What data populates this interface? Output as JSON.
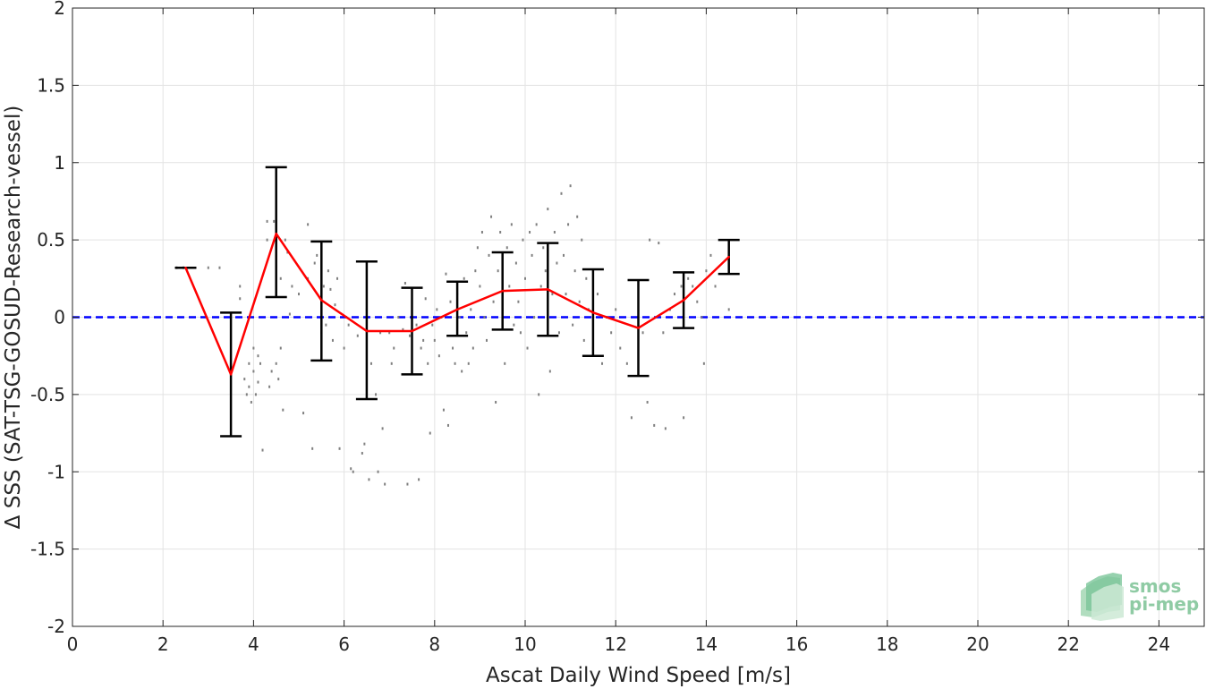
{
  "chart_data": {
    "type": "scatter",
    "title": "",
    "xlabel": "Ascat Daily Wind Speed [m/s]",
    "ylabel": "Δ SSS (SAT-TSG-GOSUD-Research-vessel)",
    "xlim": [
      0,
      25
    ],
    "ylim": [
      -2,
      2
    ],
    "xticks": [
      0,
      2,
      4,
      6,
      8,
      10,
      12,
      14,
      16,
      18,
      20,
      22,
      24
    ],
    "yticks": [
      -2,
      -1.5,
      -1,
      -0.5,
      0,
      0.5,
      1,
      1.5,
      2
    ],
    "xtick_labels": [
      "0",
      "2",
      "4",
      "6",
      "8",
      "10",
      "12",
      "14",
      "16",
      "18",
      "20",
      "22",
      "24"
    ],
    "ytick_labels": [
      "-2",
      "-1.5",
      "-1",
      "-0.5",
      "0",
      "0.5",
      "1",
      "1.5",
      "2"
    ],
    "grid": true,
    "reference_line": {
      "y": 0,
      "style": "dashed",
      "color": "#0000ff"
    },
    "binned_series": {
      "color": "#ff0000",
      "x": [
        2.5,
        3.5,
        4.5,
        5.5,
        6.5,
        7.5,
        8.5,
        9.5,
        10.5,
        11.5,
        12.5,
        13.5,
        14.5
      ],
      "mean": [
        0.32,
        -0.37,
        0.54,
        0.11,
        -0.09,
        -0.09,
        0.05,
        0.17,
        0.18,
        0.03,
        -0.07,
        0.11,
        0.39
      ],
      "lower": [
        0.32,
        -0.77,
        0.13,
        -0.28,
        -0.53,
        -0.37,
        -0.12,
        -0.08,
        -0.12,
        -0.25,
        -0.38,
        -0.07,
        0.28
      ],
      "upper": [
        0.32,
        0.03,
        0.97,
        0.49,
        0.36,
        0.19,
        0.23,
        0.42,
        0.48,
        0.31,
        0.24,
        0.29,
        0.5
      ],
      "errorbar_color": "#000000"
    },
    "scatter_color": "#808080",
    "scatter_points": [
      [
        2.3,
        0.32
      ],
      [
        2.45,
        0.32
      ],
      [
        3.0,
        0.32
      ],
      [
        3.25,
        0.32
      ],
      [
        3.7,
        0.2
      ],
      [
        3.7,
        0.12
      ],
      [
        3.8,
        -0.4
      ],
      [
        3.85,
        -0.5
      ],
      [
        3.9,
        -0.3
      ],
      [
        3.9,
        -0.45
      ],
      [
        3.95,
        -0.55
      ],
      [
        4.0,
        -0.35
      ],
      [
        4.0,
        -0.2
      ],
      [
        4.05,
        -0.5
      ],
      [
        4.1,
        -0.25
      ],
      [
        4.1,
        -0.42
      ],
      [
        4.15,
        -0.3
      ],
      [
        4.2,
        -0.86
      ],
      [
        4.3,
        0.62
      ],
      [
        4.3,
        0.5
      ],
      [
        4.35,
        -0.45
      ],
      [
        4.4,
        -0.35
      ],
      [
        4.45,
        0.62
      ],
      [
        4.5,
        -0.3
      ],
      [
        4.5,
        0.33
      ],
      [
        4.55,
        -0.4
      ],
      [
        4.6,
        -0.2
      ],
      [
        4.6,
        0.25
      ],
      [
        4.65,
        -0.6
      ],
      [
        4.7,
        0.5
      ],
      [
        4.75,
        0.42
      ],
      [
        4.8,
        0.02
      ],
      [
        4.85,
        0.2
      ],
      [
        5.0,
        0.15
      ],
      [
        5.1,
        -0.62
      ],
      [
        5.2,
        0.6
      ],
      [
        5.2,
        0.25
      ],
      [
        5.3,
        -0.85
      ],
      [
        5.35,
        0.35
      ],
      [
        5.4,
        0.4
      ],
      [
        5.5,
        -0.1
      ],
      [
        5.55,
        0.2
      ],
      [
        5.6,
        -0.05
      ],
      [
        5.65,
        0.3
      ],
      [
        5.7,
        0.18
      ],
      [
        5.75,
        -0.15
      ],
      [
        5.8,
        0.08
      ],
      [
        5.85,
        0.25
      ],
      [
        5.9,
        -0.85
      ],
      [
        6.0,
        -0.2
      ],
      [
        6.05,
        0.0
      ],
      [
        6.1,
        -0.05
      ],
      [
        6.15,
        -0.98
      ],
      [
        6.2,
        -1.0
      ],
      [
        6.3,
        -0.12
      ],
      [
        6.4,
        -0.88
      ],
      [
        6.45,
        -0.82
      ],
      [
        6.5,
        0.05
      ],
      [
        6.55,
        -1.05
      ],
      [
        6.6,
        -0.3
      ],
      [
        6.7,
        -0.5
      ],
      [
        6.75,
        -1.0
      ],
      [
        6.8,
        -0.1
      ],
      [
        6.85,
        -0.72
      ],
      [
        6.9,
        -1.08
      ],
      [
        7.0,
        -0.1
      ],
      [
        7.05,
        -0.3
      ],
      [
        7.1,
        -0.2
      ],
      [
        7.2,
        0.0
      ],
      [
        7.3,
        -0.08
      ],
      [
        7.35,
        0.22
      ],
      [
        7.4,
        -1.08
      ],
      [
        7.45,
        -0.12
      ],
      [
        7.5,
        0.1
      ],
      [
        7.6,
        -0.05
      ],
      [
        7.65,
        -1.05
      ],
      [
        7.7,
        -0.2
      ],
      [
        7.75,
        -0.15
      ],
      [
        7.8,
        0.12
      ],
      [
        7.85,
        -0.3
      ],
      [
        7.9,
        -0.75
      ],
      [
        7.95,
        -0.05
      ],
      [
        8.0,
        -0.15
      ],
      [
        8.05,
        0.05
      ],
      [
        8.1,
        -0.25
      ],
      [
        8.15,
        0.0
      ],
      [
        8.2,
        -0.6
      ],
      [
        8.25,
        0.28
      ],
      [
        8.3,
        -0.7
      ],
      [
        8.35,
        0.1
      ],
      [
        8.4,
        -0.2
      ],
      [
        8.45,
        -0.3
      ],
      [
        8.5,
        0.15
      ],
      [
        8.55,
        0.0
      ],
      [
        8.6,
        -0.35
      ],
      [
        8.65,
        0.25
      ],
      [
        8.7,
        -0.1
      ],
      [
        8.75,
        -0.3
      ],
      [
        8.8,
        0.05
      ],
      [
        8.85,
        -0.2
      ],
      [
        8.9,
        0.3
      ],
      [
        8.95,
        0.45
      ],
      [
        9.0,
        0.2
      ],
      [
        9.05,
        0.55
      ],
      [
        9.1,
        0.0
      ],
      [
        9.15,
        -0.15
      ],
      [
        9.2,
        0.4
      ],
      [
        9.25,
        0.65
      ],
      [
        9.3,
        0.1
      ],
      [
        9.35,
        -0.55
      ],
      [
        9.4,
        0.3
      ],
      [
        9.45,
        0.55
      ],
      [
        9.5,
        0.05
      ],
      [
        9.55,
        -0.3
      ],
      [
        9.6,
        0.45
      ],
      [
        9.65,
        0.2
      ],
      [
        9.7,
        0.6
      ],
      [
        9.75,
        -0.05
      ],
      [
        9.8,
        0.35
      ],
      [
        9.85,
        0.1
      ],
      [
        9.9,
        -0.1
      ],
      [
        9.95,
        0.5
      ],
      [
        10.0,
        0.25
      ],
      [
        10.05,
        -0.2
      ],
      [
        10.1,
        0.55
      ],
      [
        10.15,
        0.4
      ],
      [
        10.2,
        0.0
      ],
      [
        10.25,
        0.6
      ],
      [
        10.3,
        -0.5
      ],
      [
        10.35,
        0.2
      ],
      [
        10.4,
        0.45
      ],
      [
        10.45,
        0.3
      ],
      [
        10.5,
        0.7
      ],
      [
        10.55,
        -0.35
      ],
      [
        10.6,
        0.15
      ],
      [
        10.65,
        0.55
      ],
      [
        10.7,
        0.35
      ],
      [
        10.75,
        -0.1
      ],
      [
        10.8,
        0.8
      ],
      [
        10.85,
        0.4
      ],
      [
        10.9,
        0.15
      ],
      [
        10.95,
        0.6
      ],
      [
        11.0,
        0.85
      ],
      [
        11.05,
        -0.05
      ],
      [
        11.1,
        0.3
      ],
      [
        11.15,
        0.65
      ],
      [
        11.2,
        0.1
      ],
      [
        11.25,
        0.5
      ],
      [
        11.3,
        -0.15
      ],
      [
        11.35,
        0.25
      ],
      [
        11.4,
        0.05
      ],
      [
        11.5,
        -0.2
      ],
      [
        11.6,
        0.15
      ],
      [
        11.7,
        -0.3
      ],
      [
        11.8,
        0.0
      ],
      [
        11.9,
        -0.1
      ],
      [
        12.0,
        0.05
      ],
      [
        12.1,
        -0.2
      ],
      [
        12.25,
        -0.3
      ],
      [
        12.35,
        -0.65
      ],
      [
        12.6,
        -0.1
      ],
      [
        12.7,
        -0.55
      ],
      [
        12.75,
        0.5
      ],
      [
        12.85,
        -0.7
      ],
      [
        12.95,
        0.48
      ],
      [
        13.05,
        -0.1
      ],
      [
        13.1,
        -0.72
      ],
      [
        13.2,
        0.05
      ],
      [
        13.3,
        0.15
      ],
      [
        13.45,
        0.2
      ],
      [
        13.5,
        -0.65
      ],
      [
        13.6,
        0.25
      ],
      [
        13.7,
        0.2
      ],
      [
        13.8,
        0.1
      ],
      [
        13.9,
        0.0
      ],
      [
        13.95,
        -0.3
      ],
      [
        14.0,
        0.3
      ],
      [
        14.1,
        0.4
      ],
      [
        14.2,
        0.2
      ],
      [
        14.5,
        0.05
      ]
    ]
  },
  "logo": {
    "line1": "smos",
    "line2": "pi-mep"
  }
}
